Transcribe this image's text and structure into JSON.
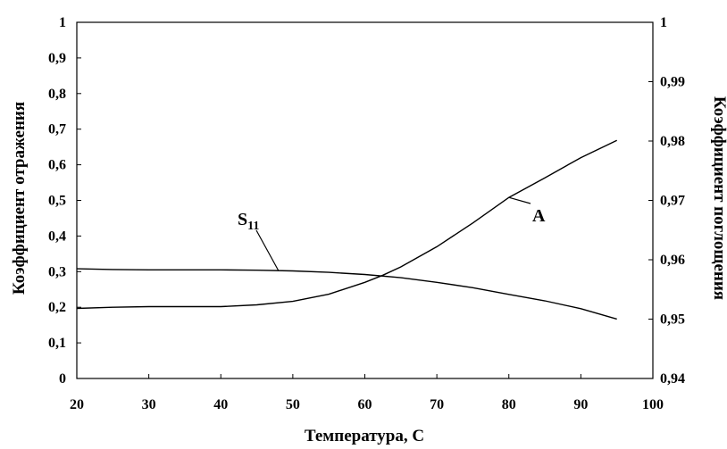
{
  "chart_data": {
    "type": "line",
    "title": "",
    "xlabel": "Температура, С",
    "ylabel_left": "Коэффициент отражения",
    "ylabel_right": "Коэффициент поглощения",
    "xlim": [
      20,
      100
    ],
    "ylim_left": [
      0,
      1
    ],
    "ylim_right": [
      0.94,
      1
    ],
    "x_ticks": [
      "20",
      "30",
      "40",
      "50",
      "60",
      "70",
      "80",
      "90",
      "100"
    ],
    "y_left_ticks": [
      "0",
      "0,1",
      "0,2",
      "0,3",
      "0,4",
      "0,5",
      "0,6",
      "0,7",
      "0,8",
      "0,9",
      "1"
    ],
    "y_right_ticks": [
      "0,94",
      "0,95",
      "0,96",
      "0,97",
      "0,98",
      "0,99",
      "1"
    ],
    "grid": false,
    "series": [
      {
        "name": "S11",
        "label_main": "S",
        "label_sub": "11",
        "axis": "left",
        "x": [
          20,
          25,
          30,
          35,
          40,
          45,
          50,
          55,
          60,
          65,
          70,
          75,
          80,
          85,
          90,
          95
        ],
        "y": [
          0.308,
          0.306,
          0.305,
          0.305,
          0.305,
          0.304,
          0.302,
          0.298,
          0.292,
          0.283,
          0.27,
          0.255,
          0.236,
          0.218,
          0.196,
          0.167
        ]
      },
      {
        "name": "A",
        "label_main": "A",
        "label_sub": "",
        "axis": "right",
        "x": [
          20,
          25,
          30,
          35,
          40,
          45,
          50,
          55,
          60,
          62.5,
          65,
          70,
          75,
          80,
          85,
          90,
          95
        ],
        "y": [
          0.9518,
          0.952,
          0.9521,
          0.9521,
          0.9521,
          0.9524,
          0.953,
          0.9542,
          0.9562,
          0.9574,
          0.9588,
          0.9622,
          0.9662,
          0.9705,
          0.9738,
          0.9772,
          0.9801
        ]
      }
    ]
  }
}
